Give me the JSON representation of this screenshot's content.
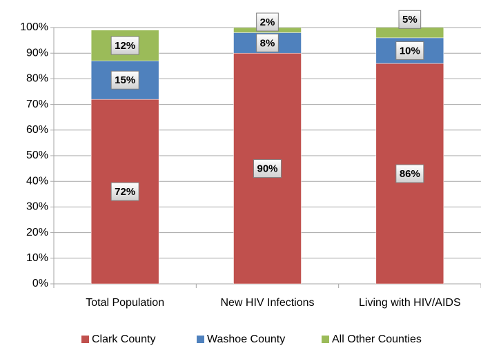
{
  "chart_data": {
    "type": "stacked_bar",
    "categories": [
      "Total Population",
      "New HIV Infections",
      "Living with HIV/AIDS"
    ],
    "series": [
      {
        "name": "Clark County",
        "color": "#c0504d",
        "values": [
          72,
          90,
          86
        ],
        "value_labels": [
          "72%",
          "90%",
          "86%"
        ]
      },
      {
        "name": "Washoe County",
        "color": "#4f81bd",
        "values": [
          15,
          8,
          10
        ],
        "value_labels": [
          "15%",
          "8%",
          "10%"
        ]
      },
      {
        "name": "All Other Counties",
        "color": "#9bbb59",
        "values": [
          12,
          2,
          5
        ],
        "value_labels": [
          "12%",
          "2%",
          "5%"
        ]
      }
    ],
    "ylim": [
      0,
      100
    ],
    "yticks": [
      {
        "value": 0,
        "label": "0%"
      },
      {
        "value": 10,
        "label": "10%"
      },
      {
        "value": 20,
        "label": "20%"
      },
      {
        "value": 30,
        "label": "30%"
      },
      {
        "value": 40,
        "label": "40%"
      },
      {
        "value": 50,
        "label": "50%"
      },
      {
        "value": 60,
        "label": "60%"
      },
      {
        "value": 70,
        "label": "70%"
      },
      {
        "value": 80,
        "label": "80%"
      },
      {
        "value": 90,
        "label": "90%"
      },
      {
        "value": 100,
        "label": "100%"
      }
    ],
    "grid": true,
    "legend": "bottom"
  }
}
